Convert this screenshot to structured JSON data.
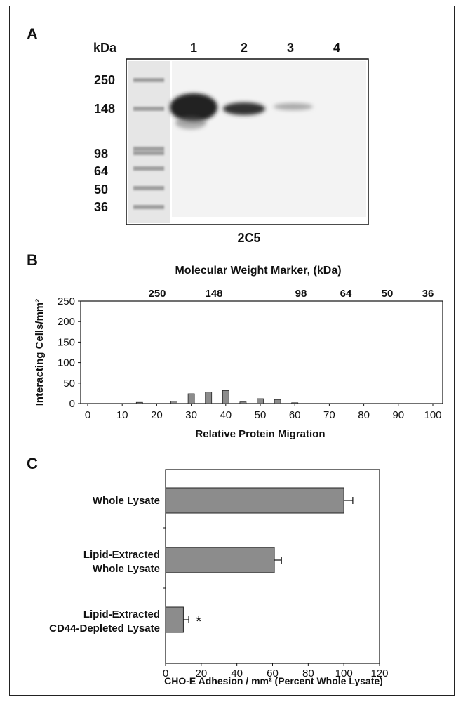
{
  "panelA": {
    "letter": "A",
    "kda_label": "kDa",
    "lanes": [
      "1",
      "2",
      "3",
      "4"
    ],
    "markers": [
      "250",
      "148",
      "98",
      "64",
      "50",
      "36"
    ],
    "antibody": "2C5"
  },
  "panelB": {
    "letter": "B",
    "top_axis_title": "Molecular Weight Marker, (kDa)",
    "top_ticks": [
      "250",
      "148",
      "98",
      "64",
      "50",
      "36"
    ],
    "chart_data": {
      "type": "bar",
      "xlabel": "Relative Protein Migration",
      "ylabel": "Interacting Cells/mm²",
      "xlim": [
        0,
        100
      ],
      "ylim": [
        0,
        250
      ],
      "xticks": [
        0,
        10,
        20,
        30,
        40,
        50,
        60,
        70,
        80,
        90,
        100
      ],
      "yticks": [
        0,
        50,
        100,
        150,
        200,
        250
      ],
      "x": [
        15,
        25,
        30,
        35,
        40,
        45,
        50,
        55,
        60
      ],
      "values": [
        3,
        6,
        24,
        28,
        32,
        4,
        12,
        10,
        2
      ],
      "bar_color": "#8c8c8c"
    }
  },
  "panelC": {
    "letter": "C",
    "chart_data": {
      "type": "bar",
      "orientation": "horizontal",
      "categories": [
        [
          "Whole Lysate"
        ],
        [
          "Lipid-Extracted",
          "Whole Lysate"
        ],
        [
          "Lipid-Extracted",
          "CD44-Depleted Lysate"
        ]
      ],
      "values": [
        100,
        61,
        10
      ],
      "errors": [
        5,
        4,
        3
      ],
      "annotations": [
        "",
        "",
        "*"
      ],
      "xlabel": "CHO-E Adhesion / mm² (Percent Whole Lysate)",
      "xlim": [
        0,
        120
      ],
      "xticks": [
        0,
        20,
        40,
        60,
        80,
        100,
        120
      ],
      "bar_color": "#8c8c8c"
    }
  }
}
